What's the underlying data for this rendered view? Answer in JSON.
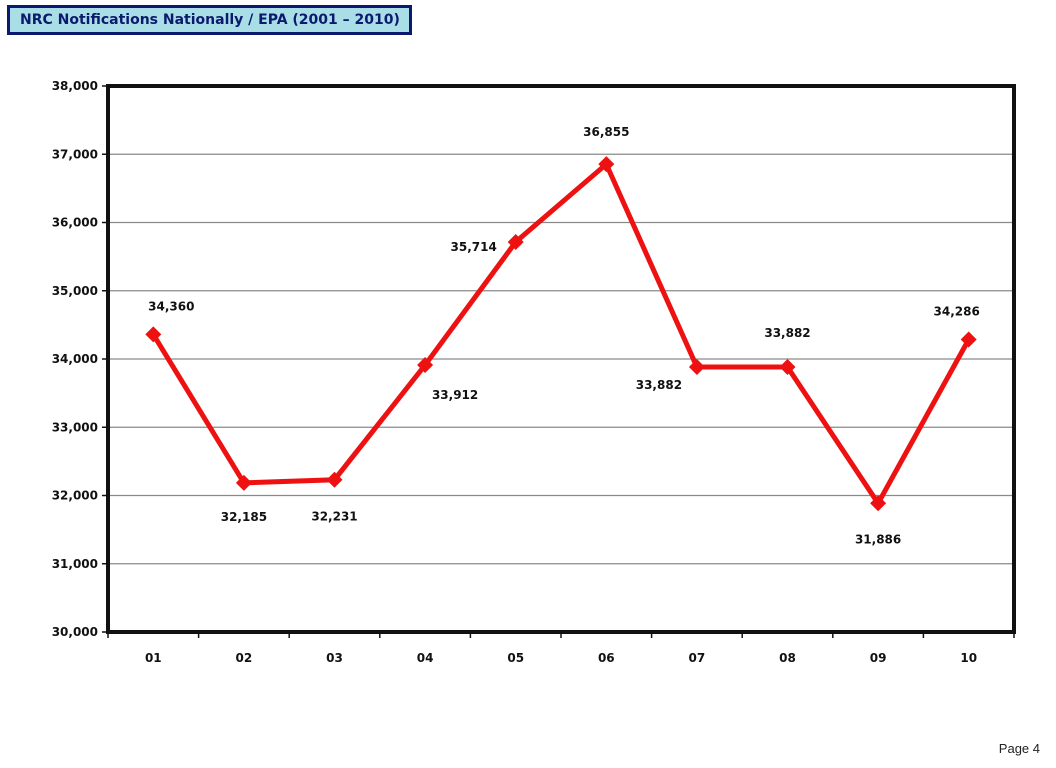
{
  "header": {
    "title": "NRC Notifications Nationally /  EPA (2001 – 2010)"
  },
  "footer": {
    "page_label": "Page 4"
  },
  "chart_data": {
    "type": "line",
    "title": "",
    "xlabel": "",
    "ylabel": "",
    "categories": [
      "01",
      "02",
      "03",
      "04",
      "05",
      "06",
      "07",
      "08",
      "09",
      "10"
    ],
    "series": [
      {
        "values": [
          34360,
          32185,
          32231,
          33912,
          35714,
          36855,
          33882,
          33882,
          31886,
          34286
        ],
        "data_labels": [
          "34,360",
          "32,185",
          "32,231",
          "33,912",
          "35,714",
          "36,855",
          "33,882",
          "33,882",
          "31,886",
          "34,286"
        ],
        "color": "#ee1111",
        "marker": "diamond"
      }
    ],
    "ylim": [
      30000,
      38000
    ],
    "yticks": [
      "30,000",
      "31,000",
      "32,000",
      "33,000",
      "34,000",
      "35,000",
      "36,000",
      "37,000",
      "38,000"
    ],
    "grid": true,
    "legend": "none"
  }
}
